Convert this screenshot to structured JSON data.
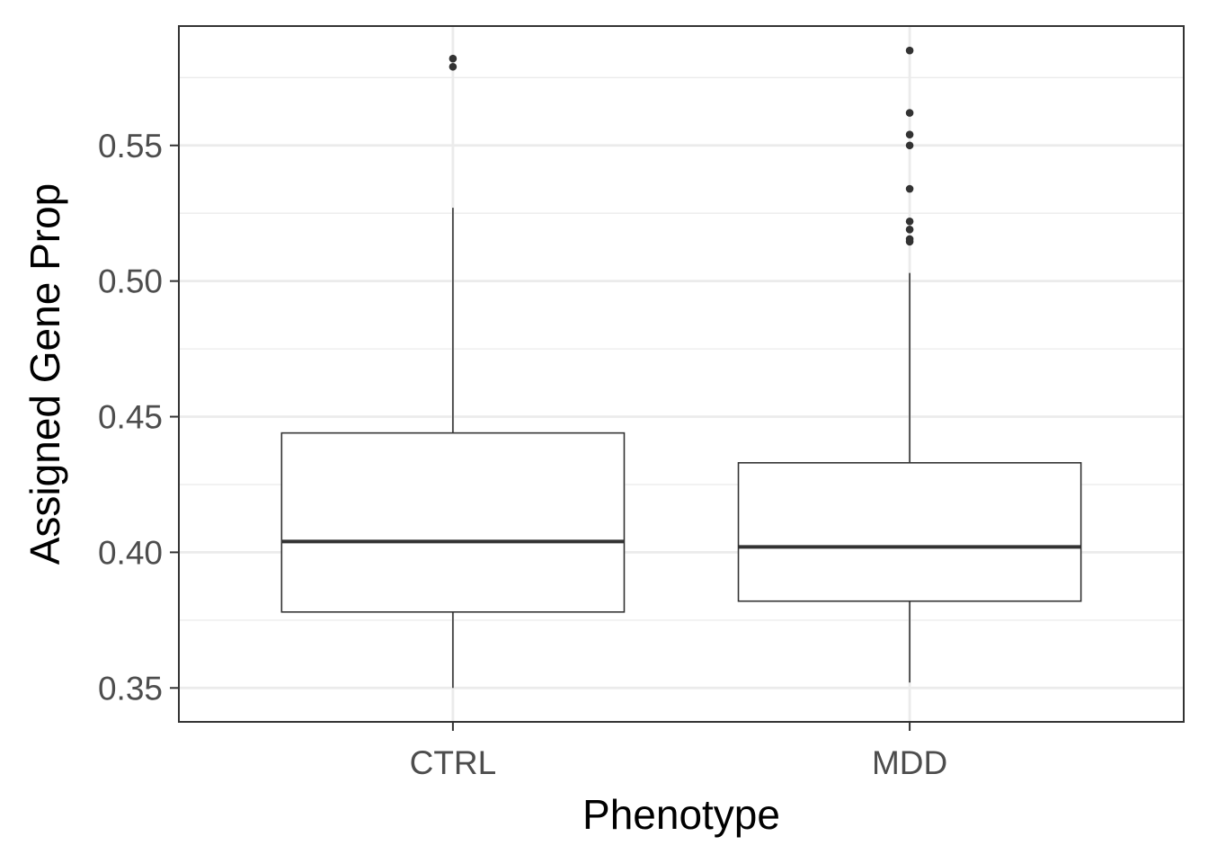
{
  "chart_data": {
    "type": "box",
    "xlabel": "Phenotype",
    "ylabel": "Assigned Gene Prop",
    "categories": [
      "CTRL",
      "MDD"
    ],
    "ylim": [
      0.3375,
      0.594
    ],
    "yticks": [
      0.35,
      0.4,
      0.45,
      0.5,
      0.55
    ],
    "ytick_labels": [
      "0.35",
      "0.40",
      "0.45",
      "0.50",
      "0.55"
    ],
    "minor_yticks": [
      0.375,
      0.425,
      0.475,
      0.525,
      0.575
    ],
    "grid": true,
    "legend": "none",
    "boxes": [
      {
        "category": "CTRL",
        "whisker_low": 0.35,
        "q1": 0.378,
        "median": 0.404,
        "q3": 0.444,
        "whisker_high": 0.527,
        "outliers": [
          0.579,
          0.582
        ]
      },
      {
        "category": "MDD",
        "whisker_low": 0.352,
        "q1": 0.382,
        "median": 0.402,
        "q3": 0.433,
        "whisker_high": 0.503,
        "outliers": [
          0.5145,
          0.5155,
          0.519,
          0.522,
          0.534,
          0.55,
          0.554,
          0.562,
          0.585
        ]
      }
    ],
    "colors": {
      "grid_major": "#ebebeb",
      "grid_minor": "#ebebeb",
      "panel_border": "#333333",
      "box_line": "#333333",
      "box_fill": "#ffffff",
      "point": "#333333"
    }
  }
}
